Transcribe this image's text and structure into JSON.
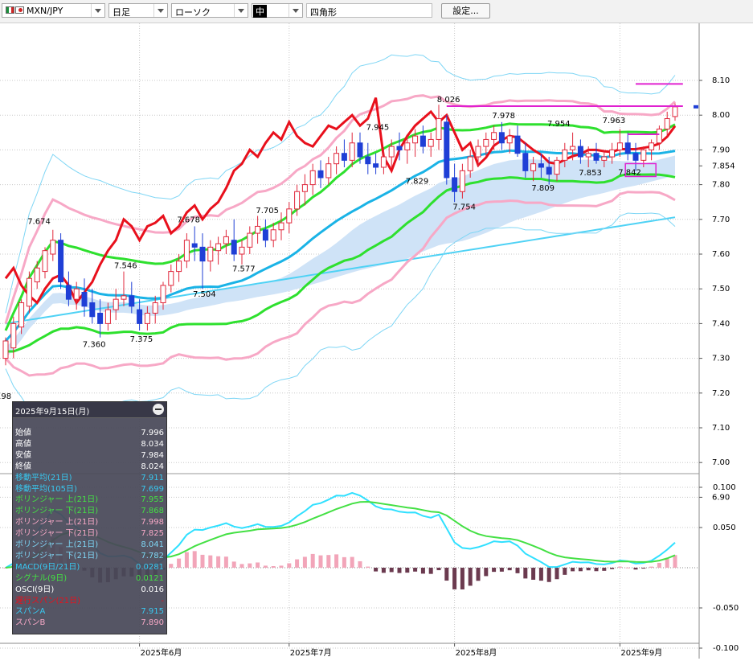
{
  "toolbar": {
    "symbol": "MXN/JPY",
    "period": "日足",
    "chart_type": "ローソク",
    "line_width": "中",
    "shape": "四角形",
    "settings_label": "設定..."
  },
  "colors": {
    "candle_up": "#e0283c",
    "candle_down": "#1f3fd6",
    "ma21": "#1ab3e6",
    "ma105": "#4fd2f5",
    "bb_inner": "#2ee02e",
    "bb_mid": "#f7a8c6",
    "bb_outer": "#7fd6f5",
    "conversion": "#e8101c",
    "cloud": "#cfe3f7",
    "macd": "#30e0ff",
    "signal": "#44e044",
    "osci": "#f2a5b9",
    "osci_neg": "#6b3a4f",
    "marker": "#e020d0"
  },
  "price_axis": [
    "8.10",
    "8.00",
    "7.90",
    "7.854",
    "7.80",
    "7.70",
    "7.60",
    "7.50",
    "7.40",
    "7.30",
    "7.20",
    "7.10",
    "7.00",
    "6.90"
  ],
  "macd_axis": [
    "0.100",
    "0.050",
    "-0.050",
    "-0.100"
  ],
  "time_axis": [
    "2025年6月",
    "2025年7月",
    "2025年8月",
    "2025年9月"
  ],
  "annotations": [
    "8.026",
    "7.978",
    "7.945",
    "7.954",
    "7.963",
    "7.829",
    "7.754",
    "7.809",
    "7.853",
    "7.842",
    "7.705",
    "7.678",
    "7.674",
    "7.577",
    "7.546",
    "7.504",
    "7.375",
    "7.360",
    "198"
  ],
  "chart_data": {
    "type": "candlestick",
    "symbol": "MXN/JPY",
    "interval": "日足",
    "ylim": [
      6.85,
      8.15
    ],
    "last": 8.024,
    "ohlc": [
      [
        7.3,
        7.36,
        7.28,
        7.35
      ],
      [
        7.33,
        7.42,
        7.3,
        7.4
      ],
      [
        7.39,
        7.47,
        7.37,
        7.46
      ],
      [
        7.45,
        7.55,
        7.43,
        7.53
      ],
      [
        7.52,
        7.58,
        7.5,
        7.56
      ],
      [
        7.55,
        7.62,
        7.53,
        7.61
      ],
      [
        7.6,
        7.67,
        7.58,
        7.64
      ],
      [
        7.64,
        7.66,
        7.5,
        7.52
      ],
      [
        7.51,
        7.55,
        7.45,
        7.47
      ],
      [
        7.47,
        7.52,
        7.44,
        7.5
      ],
      [
        7.49,
        7.53,
        7.42,
        7.45
      ],
      [
        7.46,
        7.5,
        7.4,
        7.42
      ],
      [
        7.43,
        7.47,
        7.36,
        7.4
      ],
      [
        7.4,
        7.46,
        7.38,
        7.44
      ],
      [
        7.44,
        7.5,
        7.41,
        7.47
      ],
      [
        7.47,
        7.55,
        7.45,
        7.48
      ],
      [
        7.48,
        7.52,
        7.43,
        7.45
      ],
      [
        7.44,
        7.47,
        7.38,
        7.4
      ],
      [
        7.4,
        7.45,
        7.38,
        7.43
      ],
      [
        7.43,
        7.48,
        7.4,
        7.46
      ],
      [
        7.46,
        7.52,
        7.44,
        7.51
      ],
      [
        7.51,
        7.57,
        7.49,
        7.55
      ],
      [
        7.55,
        7.6,
        7.52,
        7.58
      ],
      [
        7.58,
        7.66,
        7.56,
        7.64
      ],
      [
        7.63,
        7.68,
        7.58,
        7.62
      ],
      [
        7.62,
        7.66,
        7.5,
        7.58
      ],
      [
        7.58,
        7.64,
        7.55,
        7.62
      ],
      [
        7.61,
        7.65,
        7.57,
        7.63
      ],
      [
        7.63,
        7.67,
        7.6,
        7.65
      ],
      [
        7.64,
        7.7,
        7.58,
        7.6
      ],
      [
        7.6,
        7.64,
        7.57,
        7.62
      ],
      [
        7.62,
        7.68,
        7.6,
        7.66
      ],
      [
        7.66,
        7.71,
        7.63,
        7.68
      ],
      [
        7.67,
        7.7,
        7.62,
        7.64
      ],
      [
        7.64,
        7.69,
        7.62,
        7.67
      ],
      [
        7.67,
        7.72,
        7.64,
        7.69
      ],
      [
        7.69,
        7.75,
        7.66,
        7.73
      ],
      [
        7.73,
        7.8,
        7.71,
        7.78
      ],
      [
        7.78,
        7.83,
        7.74,
        7.8
      ],
      [
        7.8,
        7.86,
        7.77,
        7.84
      ],
      [
        7.84,
        7.87,
        7.79,
        7.82
      ],
      [
        7.82,
        7.88,
        7.8,
        7.86
      ],
      [
        7.86,
        7.91,
        7.83,
        7.89
      ],
      [
        7.89,
        7.93,
        7.85,
        7.87
      ],
      [
        7.87,
        7.95,
        7.85,
        7.92
      ],
      [
        7.92,
        7.95,
        7.86,
        7.88
      ],
      [
        7.88,
        7.92,
        7.83,
        7.86
      ],
      [
        7.86,
        7.89,
        7.83,
        7.85
      ],
      [
        7.85,
        7.9,
        7.83,
        7.88
      ],
      [
        7.88,
        7.93,
        7.85,
        7.91
      ],
      [
        7.91,
        7.95,
        7.87,
        7.9
      ],
      [
        7.9,
        7.94,
        7.86,
        7.92
      ],
      [
        7.92,
        7.96,
        7.88,
        7.94
      ],
      [
        7.94,
        7.97,
        7.89,
        7.91
      ],
      [
        7.91,
        7.95,
        7.88,
        7.93
      ],
      [
        7.93,
        8.03,
        7.9,
        7.99
      ],
      [
        7.98,
        8.0,
        7.8,
        7.82
      ],
      [
        7.82,
        7.86,
        7.75,
        7.78
      ],
      [
        7.78,
        7.86,
        7.76,
        7.84
      ],
      [
        7.84,
        7.9,
        7.82,
        7.88
      ],
      [
        7.88,
        7.93,
        7.85,
        7.91
      ],
      [
        7.91,
        7.95,
        7.88,
        7.93
      ],
      [
        7.93,
        7.97,
        7.9,
        7.95
      ],
      [
        7.95,
        7.98,
        7.9,
        7.92
      ],
      [
        7.92,
        7.96,
        7.89,
        7.94
      ],
      [
        7.94,
        7.97,
        7.88,
        7.89
      ],
      [
        7.89,
        7.92,
        7.82,
        7.84
      ],
      [
        7.84,
        7.88,
        7.81,
        7.86
      ],
      [
        7.86,
        7.89,
        7.82,
        7.85
      ],
      [
        7.85,
        7.88,
        7.8,
        7.83
      ],
      [
        7.83,
        7.88,
        7.81,
        7.87
      ],
      [
        7.87,
        7.92,
        7.85,
        7.9
      ],
      [
        7.9,
        7.95,
        7.87,
        7.91
      ],
      [
        7.91,
        7.93,
        7.86,
        7.88
      ],
      [
        7.88,
        7.91,
        7.85,
        7.89
      ],
      [
        7.89,
        7.92,
        7.86,
        7.87
      ],
      [
        7.87,
        7.9,
        7.85,
        7.88
      ],
      [
        7.88,
        7.92,
        7.86,
        7.9
      ],
      [
        7.9,
        7.96,
        7.88,
        7.92
      ],
      [
        7.92,
        7.95,
        7.87,
        7.89
      ],
      [
        7.89,
        7.92,
        7.84,
        7.87
      ],
      [
        7.87,
        7.91,
        7.85,
        7.9
      ],
      [
        7.9,
        7.93,
        7.87,
        7.92
      ],
      [
        7.92,
        7.97,
        7.9,
        7.96
      ],
      [
        7.96,
        8.01,
        7.94,
        7.99
      ],
      [
        7.996,
        8.034,
        7.984,
        8.024
      ]
    ],
    "selected_day": {
      "date": "2025年9月15日(月)",
      "rows": [
        {
          "label": "始値",
          "value": "7.996",
          "color": "#ffffff"
        },
        {
          "label": "高値",
          "value": "8.034",
          "color": "#ffffff"
        },
        {
          "label": "安値",
          "value": "7.984",
          "color": "#ffffff"
        },
        {
          "label": "終値",
          "value": "8.024",
          "color": "#ffffff"
        },
        {
          "label": "移動平均(21日)",
          "value": "7.911",
          "color": "#38c8f0"
        },
        {
          "label": "移動平均(105日)",
          "value": "7.699",
          "color": "#38c8f0"
        },
        {
          "label": "ボリンジャー 上(21日)",
          "value": "7.955",
          "color": "#44e044"
        },
        {
          "label": "ボリンジャー 下(21日)",
          "value": "7.868",
          "color": "#44e044"
        },
        {
          "label": "ボリンジャー 上(21日)",
          "value": "7.998",
          "color": "#f7a8c6"
        },
        {
          "label": "ボリンジャー 下(21日)",
          "value": "7.825",
          "color": "#f7a8c6"
        },
        {
          "label": "ボリンジャー 上(21日)",
          "value": "8.041",
          "color": "#7fd6f5"
        },
        {
          "label": "ボリンジャー 下(21日)",
          "value": "7.782",
          "color": "#7fd6f5"
        },
        {
          "label": "MACD(9日/21日)",
          "value": "0.0281",
          "color": "#38c8f0"
        },
        {
          "label": "シグナル(9日)",
          "value": "0.0121",
          "color": "#44e044"
        },
        {
          "label": "OSCI(9日)",
          "value": "0.016",
          "color": "#ffffff"
        },
        {
          "label": "遅行スパン(21日)",
          "value": "-",
          "color": "#e8101c"
        },
        {
          "label": "スパンA",
          "value": "7.915",
          "color": "#38c8f0"
        },
        {
          "label": "スパンB",
          "value": "7.890",
          "color": "#f7a8c6"
        }
      ]
    }
  }
}
